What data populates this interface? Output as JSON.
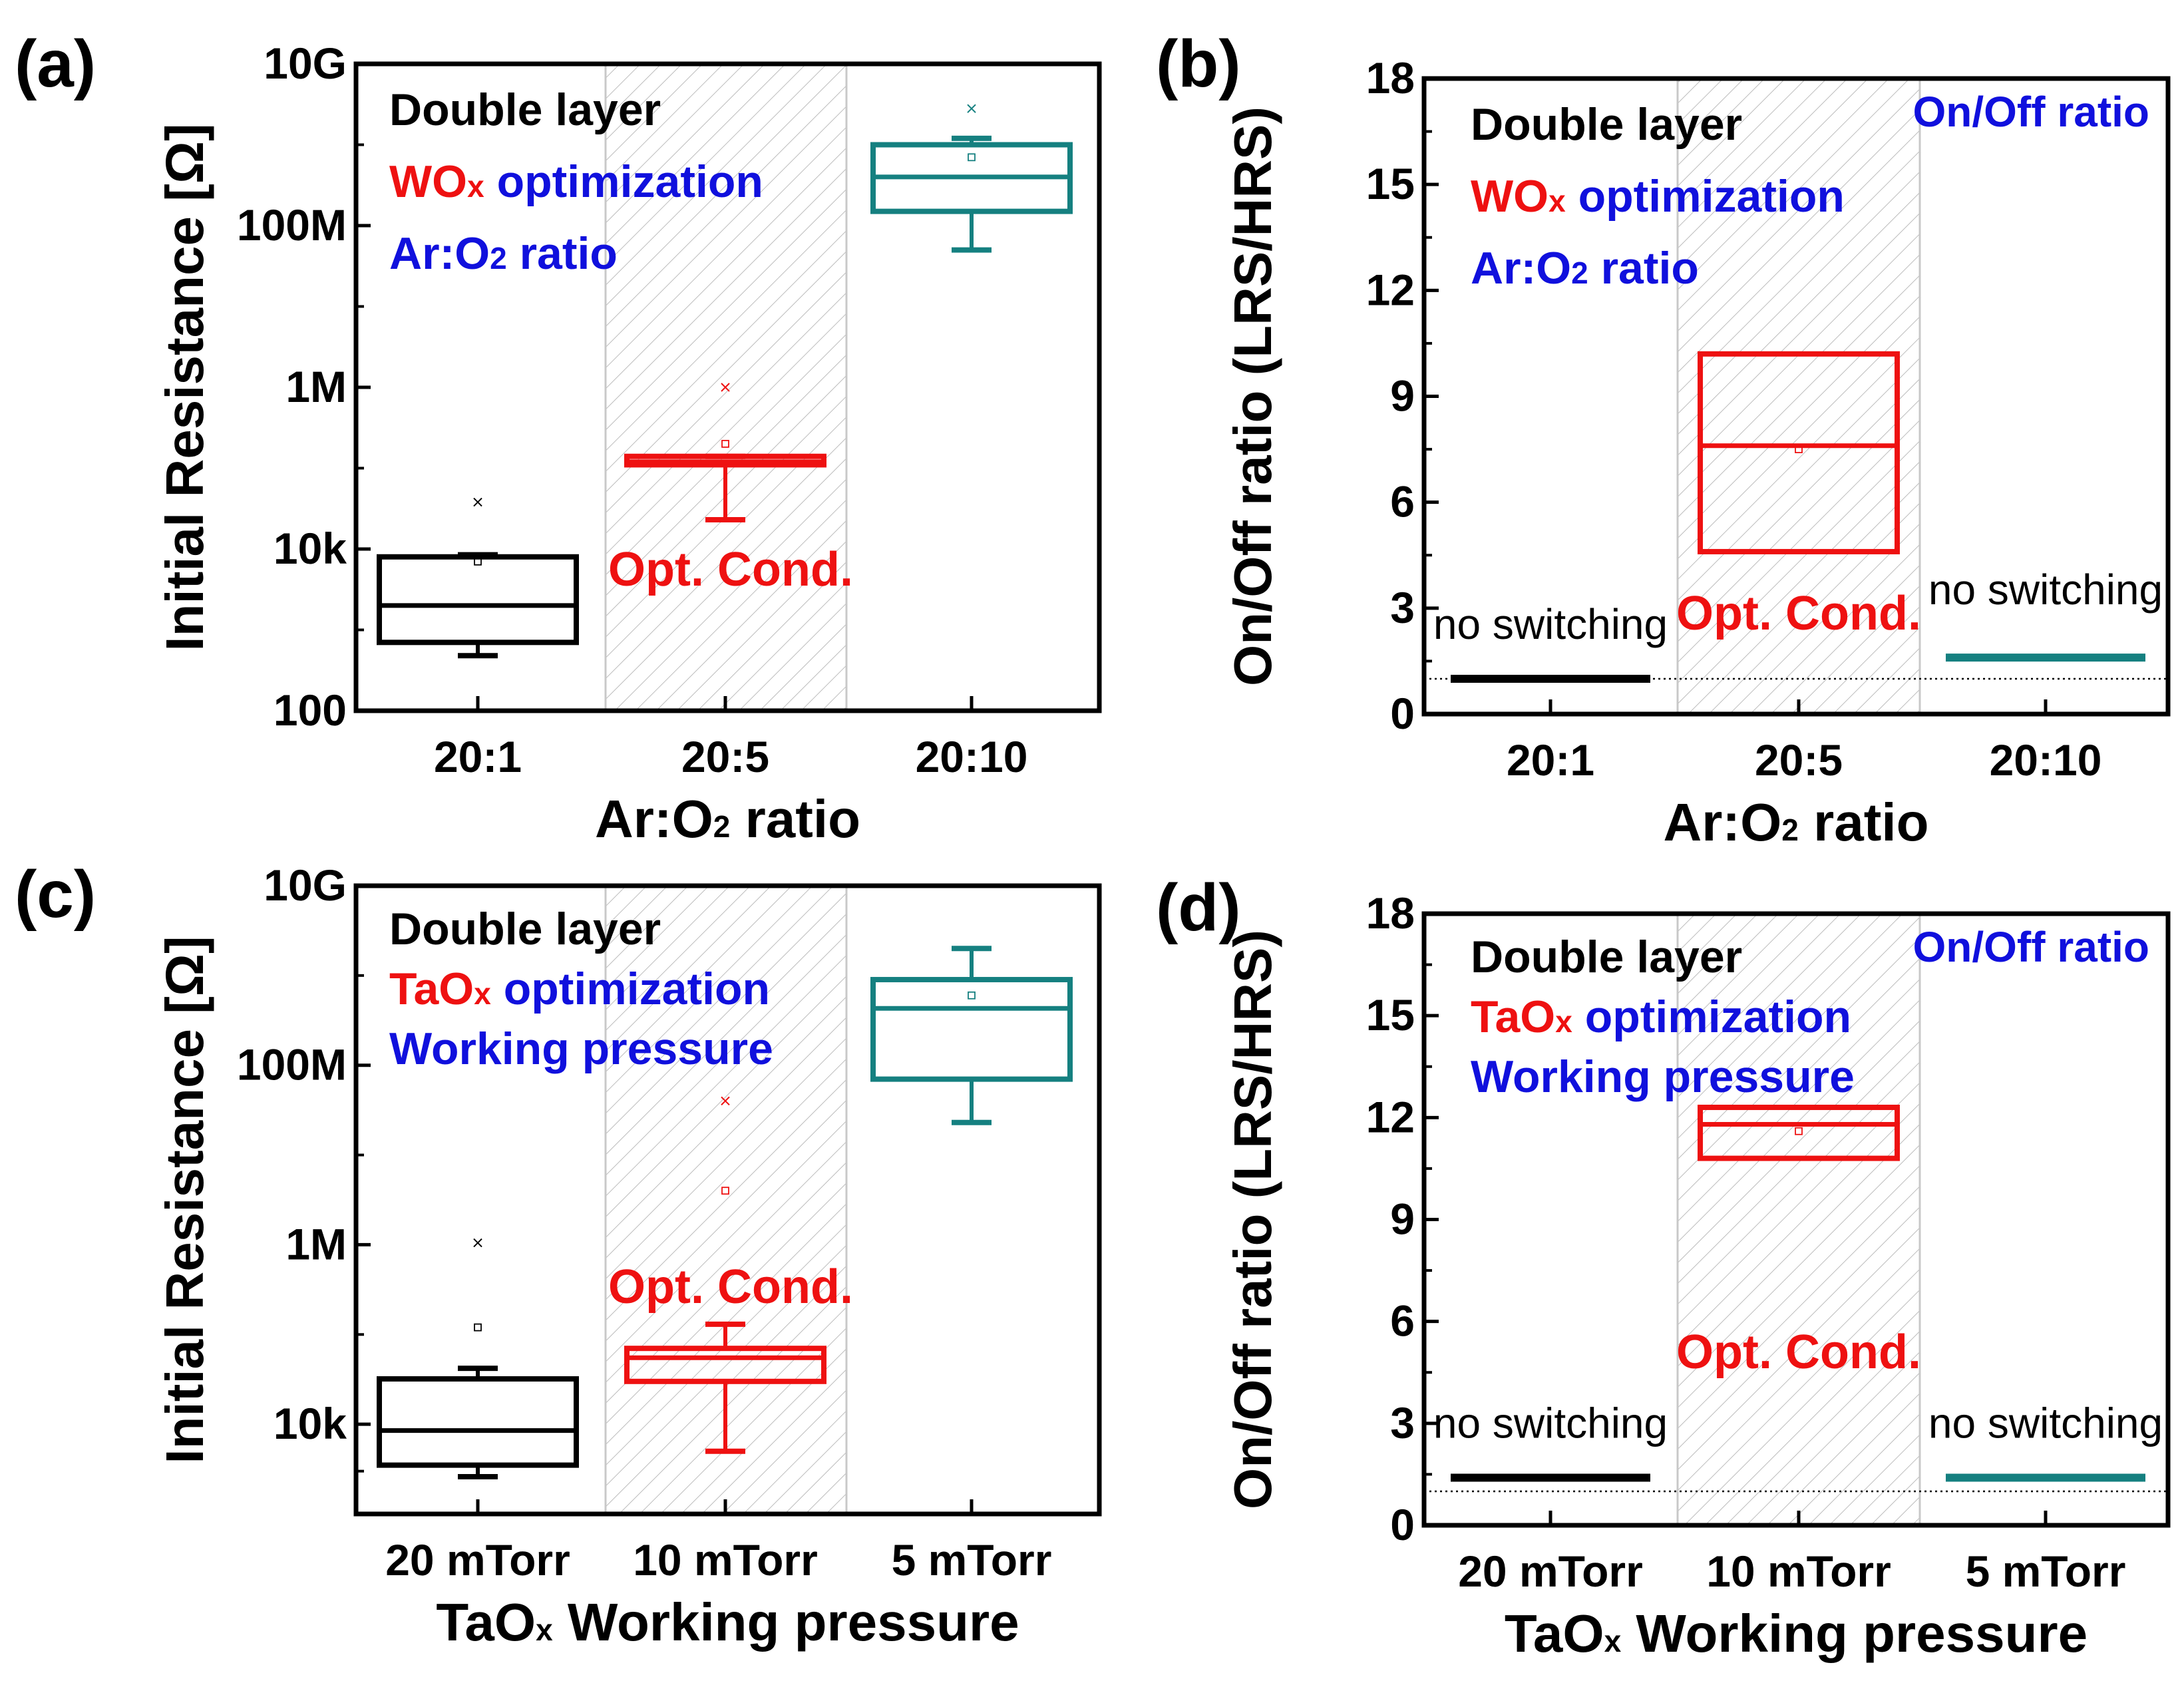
{
  "chart_data": [
    {
      "panel_label": "(a)",
      "type": "box",
      "scale": "log",
      "ylabel": "Initial Resistance [Ω]",
      "xlabel_parts": [
        "Ar:O",
        "2",
        " ratio"
      ],
      "ytick_values": [
        100,
        10000,
        1000000,
        100000000,
        10000000000
      ],
      "ytick_labels": [
        "100",
        "10k",
        "1M",
        "100M",
        "10G"
      ],
      "ylim": [
        100,
        10000000000
      ],
      "categories": [
        "20:1",
        "20:5",
        "20:10"
      ],
      "highlight_index": 1,
      "legend": {
        "title": "Double layer",
        "line2_parts": [
          "WO",
          "x",
          " optimization"
        ],
        "line3_parts": [
          "Ar:O",
          "2",
          " ratio"
        ]
      },
      "annotations": {
        "opt_cond": "Opt. Cond."
      },
      "boxes": [
        {
          "color": "#000000",
          "q1": 700,
          "median": 2000,
          "q3": 8000,
          "whisker_low": 480,
          "whisker_high": 8500,
          "mean": 7000,
          "outlier": 38000
        },
        {
          "color": "#ee1111",
          "q1": 110000,
          "median": 120000,
          "q3": 140000,
          "whisker_low": 23000,
          "whisker_high": 140000,
          "mean": 200000,
          "outlier": 1000000
        },
        {
          "color": "#158080",
          "q1": 150000000,
          "median": 400000000,
          "q3": 1000000000,
          "whisker_low": 50000000,
          "whisker_high": 1200000000,
          "mean": 700000000,
          "outlier": 2800000000
        }
      ]
    },
    {
      "panel_label": "(b)",
      "type": "box",
      "scale": "linear",
      "ylabel": "On/Off ratio (LRS/HRS)",
      "xlabel_parts": [
        "Ar:O",
        "2",
        " ratio"
      ],
      "ytick_values": [
        0,
        3,
        6,
        9,
        12,
        15,
        18
      ],
      "ytick_labels": [
        "0",
        "3",
        "6",
        "9",
        "12",
        "15",
        "18"
      ],
      "ylim": [
        0,
        18
      ],
      "reference_line": 1,
      "categories": [
        "20:1",
        "20:5",
        "20:10"
      ],
      "highlight_index": 1,
      "legend": {
        "title": "Double layer",
        "line2_parts": [
          "WO",
          "x",
          " optimization"
        ],
        "line3_parts": [
          "Ar:O",
          "2",
          " ratio"
        ]
      },
      "annotations": {
        "opt_cond": "Opt. Cond.",
        "corner": "On/Off ratio",
        "no_switching": "no switching"
      },
      "boxes": [
        {
          "color": "#000000",
          "flat": 1.0,
          "label": "no switching"
        },
        {
          "color": "#ee1111",
          "q1": 4.6,
          "median": 7.6,
          "q3": 10.2,
          "mean": 7.5
        },
        {
          "color": "#158080",
          "flat": 1.6,
          "label": "no switching"
        }
      ]
    },
    {
      "panel_label": "(c)",
      "type": "box",
      "scale": "log",
      "ylabel": "Initial Resistance [Ω]",
      "xlabel_parts": [
        "TaO",
        "x",
        " Working pressure"
      ],
      "ytick_values": [
        10000,
        1000000,
        100000000,
        10000000000
      ],
      "ytick_labels": [
        "10k",
        "1M",
        "100M",
        "10G"
      ],
      "ylim": [
        1000,
        10000000000
      ],
      "categories": [
        "20 mTorr",
        "10 mTorr",
        "5 mTorr"
      ],
      "highlight_index": 1,
      "legend": {
        "title": "Double layer",
        "line2_parts": [
          "TaO",
          "x",
          " optimization"
        ],
        "line3_parts": [
          "Working pressure",
          "",
          ""
        ]
      },
      "annotations": {
        "opt_cond": "Opt. Cond."
      },
      "boxes": [
        {
          "color": "#000000",
          "q1": 3500,
          "median": 8500,
          "q3": 32000,
          "whisker_low": 2600,
          "whisker_high": 42000,
          "mean": 120000,
          "outlier": 1050000
        },
        {
          "color": "#ee1111",
          "q1": 30000,
          "median": 55000,
          "q3": 70000,
          "whisker_low": 5000,
          "whisker_high": 130000,
          "mean": 4000000,
          "outlier": 40000000
        },
        {
          "color": "#158080",
          "q1": 70000000,
          "median": 430000000,
          "q3": 900000000,
          "whisker_low": 23000000,
          "whisker_high": 2000000000,
          "mean": 600000000
        }
      ]
    },
    {
      "panel_label": "(d)",
      "type": "box",
      "scale": "linear",
      "ylabel": "On/Off ratio (LRS/HRS)",
      "xlabel_parts": [
        "TaO",
        "x",
        " Working pressure"
      ],
      "ytick_values": [
        0,
        3,
        6,
        9,
        12,
        15,
        18
      ],
      "ytick_labels": [
        "0",
        "3",
        "6",
        "9",
        "12",
        "15",
        "18"
      ],
      "ylim": [
        0,
        18
      ],
      "reference_line": 1,
      "categories": [
        "20 mTorr",
        "10 mTorr",
        "5 mTorr"
      ],
      "highlight_index": 1,
      "legend": {
        "title": "Double layer",
        "line2_parts": [
          "TaO",
          "x",
          " optimization"
        ],
        "line3_parts": [
          "Working pressure",
          "",
          ""
        ]
      },
      "annotations": {
        "opt_cond": "Opt. Cond.",
        "corner": "On/Off ratio",
        "no_switching": "no switching"
      },
      "boxes": [
        {
          "color": "#000000",
          "flat": 1.4,
          "label": "no switching"
        },
        {
          "color": "#ee1111",
          "q1": 10.8,
          "median": 11.8,
          "q3": 12.3,
          "mean": 11.6
        },
        {
          "color": "#158080",
          "flat": 1.4,
          "label": "no switching"
        }
      ]
    }
  ]
}
